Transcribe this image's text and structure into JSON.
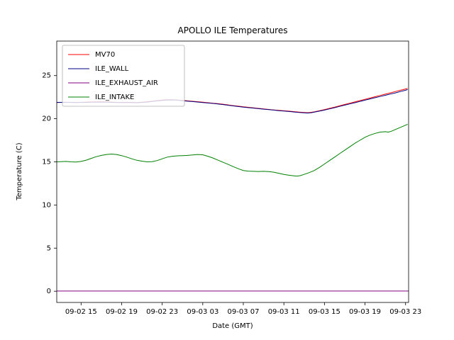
{
  "figure": {
    "background": "#ffffff",
    "frame_color": "#000000"
  },
  "chart_data": {
    "type": "line",
    "title": "APOLLO ILE Temperatures",
    "xlabel": "Date (GMT)",
    "ylabel": "Temperature (C)",
    "xlim": [
      12.6,
      47.3
    ],
    "ylim": [
      -1.3,
      29.0
    ],
    "grid": false,
    "legend_position": "upper left",
    "yticks": [
      0,
      5,
      10,
      15,
      20,
      25
    ],
    "xticks": [
      {
        "x": 15,
        "label": "09-02 15"
      },
      {
        "x": 19,
        "label": "09-02 19"
      },
      {
        "x": 23,
        "label": "09-02 23"
      },
      {
        "x": 27,
        "label": "09-03 03"
      },
      {
        "x": 31,
        "label": "09-03 07"
      },
      {
        "x": 35,
        "label": "09-03 11"
      },
      {
        "x": 39,
        "label": "09-03 15"
      },
      {
        "x": 43,
        "label": "09-03 19"
      },
      {
        "x": 47,
        "label": "09-03 23"
      }
    ],
    "series": [
      {
        "name": "MV70",
        "color": "#ff0000",
        "points": [
          [
            12.6,
            21.88
          ],
          [
            13,
            21.9
          ],
          [
            13.5,
            21.92
          ],
          [
            14,
            21.9
          ],
          [
            14.5,
            21.88
          ],
          [
            15,
            21.9
          ],
          [
            15.5,
            21.93
          ],
          [
            16,
            21.95
          ],
          [
            16.5,
            21.96
          ],
          [
            17,
            21.97
          ],
          [
            17.5,
            21.95
          ],
          [
            18,
            21.93
          ],
          [
            18.5,
            21.9
          ],
          [
            19,
            21.89
          ],
          [
            19.5,
            21.9
          ],
          [
            20,
            21.9
          ],
          [
            20.5,
            21.88
          ],
          [
            21,
            21.92
          ],
          [
            21.5,
            21.97
          ],
          [
            22,
            22.03
          ],
          [
            22.5,
            22.1
          ],
          [
            23,
            22.16
          ],
          [
            23.5,
            22.2
          ],
          [
            24,
            22.21
          ],
          [
            24.5,
            22.18
          ],
          [
            25,
            22.12
          ],
          [
            25.5,
            22.07
          ],
          [
            26,
            22.02
          ],
          [
            26.5,
            21.97
          ],
          [
            27,
            21.92
          ],
          [
            27.5,
            21.86
          ],
          [
            28,
            21.8
          ],
          [
            28.5,
            21.74
          ],
          [
            29,
            21.68
          ],
          [
            29.5,
            21.6
          ],
          [
            30,
            21.52
          ],
          [
            30.5,
            21.45
          ],
          [
            31,
            21.38
          ],
          [
            31.5,
            21.32
          ],
          [
            32,
            21.26
          ],
          [
            32.5,
            21.2
          ],
          [
            33,
            21.14
          ],
          [
            33.5,
            21.08
          ],
          [
            34,
            21.02
          ],
          [
            34.5,
            20.97
          ],
          [
            35,
            20.92
          ],
          [
            35.5,
            20.88
          ],
          [
            36,
            20.82
          ],
          [
            36.5,
            20.76
          ],
          [
            37,
            20.72
          ],
          [
            37.3,
            20.7
          ],
          [
            37.6,
            20.72
          ],
          [
            38,
            20.8
          ],
          [
            38.5,
            20.92
          ],
          [
            39,
            21.06
          ],
          [
            39.5,
            21.2
          ],
          [
            40,
            21.35
          ],
          [
            40.5,
            21.5
          ],
          [
            41,
            21.65
          ],
          [
            41.5,
            21.8
          ],
          [
            42,
            21.95
          ],
          [
            42.5,
            22.1
          ],
          [
            43,
            22.25
          ],
          [
            43.5,
            22.4
          ],
          [
            44,
            22.55
          ],
          [
            44.5,
            22.7
          ],
          [
            45,
            22.85
          ],
          [
            45.5,
            23.0
          ],
          [
            46,
            23.15
          ],
          [
            46.5,
            23.3
          ],
          [
            47,
            23.45
          ],
          [
            47.2,
            23.52
          ]
        ]
      },
      {
        "name": "ILE_WALL",
        "color": "#000080",
        "points": [
          [
            12.6,
            21.9
          ],
          [
            13.5,
            21.9
          ],
          [
            14.5,
            21.87
          ],
          [
            15.5,
            21.9
          ],
          [
            16.5,
            21.93
          ],
          [
            17.5,
            21.92
          ],
          [
            18.5,
            21.88
          ],
          [
            19.5,
            21.87
          ],
          [
            20.5,
            21.86
          ],
          [
            21.5,
            21.93
          ],
          [
            22,
            22.0
          ],
          [
            22.5,
            22.07
          ],
          [
            23,
            22.13
          ],
          [
            23.5,
            22.17
          ],
          [
            24,
            22.18
          ],
          [
            24.5,
            22.15
          ],
          [
            25,
            22.09
          ],
          [
            26,
            21.99
          ],
          [
            27,
            21.88
          ],
          [
            28,
            21.77
          ],
          [
            29,
            21.64
          ],
          [
            30,
            21.49
          ],
          [
            31,
            21.35
          ],
          [
            32,
            21.23
          ],
          [
            33,
            21.11
          ],
          [
            34,
            21.0
          ],
          [
            34.5,
            20.94
          ],
          [
            35,
            20.89
          ],
          [
            35.5,
            20.84
          ],
          [
            36,
            20.78
          ],
          [
            36.5,
            20.72
          ],
          [
            37,
            20.68
          ],
          [
            37.3,
            20.66
          ],
          [
            37.7,
            20.7
          ],
          [
            38,
            20.76
          ],
          [
            38.5,
            20.88
          ],
          [
            39,
            21.0
          ],
          [
            39.5,
            21.14
          ],
          [
            40,
            21.28
          ],
          [
            40.5,
            21.43
          ],
          [
            41,
            21.58
          ],
          [
            41.5,
            21.72
          ],
          [
            42,
            21.86
          ],
          [
            42.5,
            22.0
          ],
          [
            43,
            22.15
          ],
          [
            43.5,
            22.3
          ],
          [
            44,
            22.44
          ],
          [
            44.5,
            22.58
          ],
          [
            45,
            22.72
          ],
          [
            45.5,
            22.86
          ],
          [
            46,
            23.0
          ],
          [
            46.5,
            23.15
          ],
          [
            47,
            23.3
          ],
          [
            47.2,
            23.38
          ]
        ]
      },
      {
        "name": "ILE_EXHAUST_AIR",
        "color": "#800080",
        "points": [
          [
            12.6,
            0.02
          ],
          [
            47.3,
            0.02
          ]
        ]
      },
      {
        "name": "ILE_INTAKE",
        "color": "#008000",
        "points": [
          [
            12.6,
            15.0
          ],
          [
            13,
            15.02
          ],
          [
            13.5,
            15.05
          ],
          [
            14,
            15.0
          ],
          [
            14.5,
            14.98
          ],
          [
            15,
            15.05
          ],
          [
            15.5,
            15.2
          ],
          [
            16,
            15.4
          ],
          [
            16.5,
            15.6
          ],
          [
            17,
            15.75
          ],
          [
            17.5,
            15.85
          ],
          [
            18,
            15.9
          ],
          [
            18.5,
            15.85
          ],
          [
            19,
            15.72
          ],
          [
            19.5,
            15.55
          ],
          [
            20,
            15.35
          ],
          [
            20.5,
            15.18
          ],
          [
            21,
            15.08
          ],
          [
            21.5,
            15.0
          ],
          [
            22,
            15.02
          ],
          [
            22.5,
            15.15
          ],
          [
            23,
            15.35
          ],
          [
            23.5,
            15.55
          ],
          [
            24,
            15.65
          ],
          [
            24.5,
            15.7
          ],
          [
            25,
            15.72
          ],
          [
            25.5,
            15.75
          ],
          [
            26,
            15.8
          ],
          [
            26.5,
            15.85
          ],
          [
            27,
            15.82
          ],
          [
            27.5,
            15.65
          ],
          [
            28,
            15.45
          ],
          [
            28.5,
            15.2
          ],
          [
            29,
            14.95
          ],
          [
            29.5,
            14.7
          ],
          [
            30,
            14.45
          ],
          [
            30.5,
            14.2
          ],
          [
            31,
            14.0
          ],
          [
            31.5,
            13.92
          ],
          [
            32,
            13.9
          ],
          [
            32.5,
            13.88
          ],
          [
            33,
            13.9
          ],
          [
            33.5,
            13.87
          ],
          [
            34,
            13.8
          ],
          [
            34.5,
            13.68
          ],
          [
            35,
            13.55
          ],
          [
            35.5,
            13.45
          ],
          [
            36,
            13.38
          ],
          [
            36.3,
            13.35
          ],
          [
            36.6,
            13.4
          ],
          [
            37,
            13.55
          ],
          [
            37.5,
            13.75
          ],
          [
            38,
            14.0
          ],
          [
            38.5,
            14.35
          ],
          [
            39,
            14.75
          ],
          [
            39.5,
            15.15
          ],
          [
            40,
            15.55
          ],
          [
            40.5,
            15.95
          ],
          [
            41,
            16.35
          ],
          [
            41.5,
            16.75
          ],
          [
            42,
            17.15
          ],
          [
            42.5,
            17.5
          ],
          [
            43,
            17.85
          ],
          [
            43.5,
            18.1
          ],
          [
            44,
            18.3
          ],
          [
            44.5,
            18.45
          ],
          [
            45,
            18.5
          ],
          [
            45.3,
            18.45
          ],
          [
            45.6,
            18.55
          ],
          [
            46,
            18.75
          ],
          [
            46.5,
            19.0
          ],
          [
            47,
            19.25
          ],
          [
            47.2,
            19.35
          ]
        ]
      }
    ],
    "legend_labels": [
      "MV70",
      "ILE_WALL",
      "ILE_EXHAUST_AIR",
      "ILE_INTAKE"
    ]
  }
}
